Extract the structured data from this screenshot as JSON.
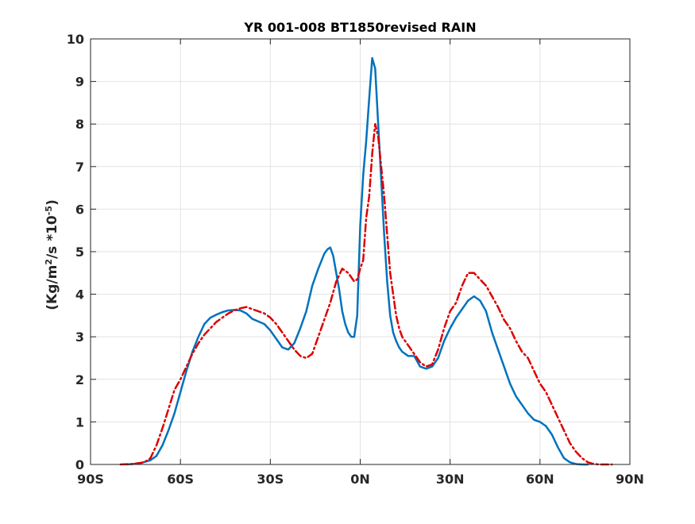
{
  "chart_data": {
    "type": "line",
    "title": "YR 001-008 BT1850revised RAIN",
    "ylabel": {
      "prefix": "(Kg/m",
      "sup1": "2",
      "mid": "/s   *10",
      "sup2": "-5",
      "suffix": ")"
    },
    "xlim": [
      -90,
      90
    ],
    "ylim": [
      0,
      10
    ],
    "x_ticks": [
      -90,
      -60,
      -30,
      0,
      30,
      60,
      90
    ],
    "x_tick_labels": [
      "90S",
      "60S",
      "30S",
      "0N",
      "30N",
      "60N",
      "90N"
    ],
    "y_ticks": [
      0,
      1,
      2,
      3,
      4,
      5,
      6,
      7,
      8,
      9,
      10
    ],
    "y_tick_labels": [
      "0",
      "1",
      "2",
      "3",
      "4",
      "5",
      "6",
      "7",
      "8",
      "9",
      "10"
    ],
    "grid": true,
    "series": [
      {
        "color": "#0072BD",
        "style": "solid",
        "x": [
          -78,
          -74,
          -70,
          -68,
          -66,
          -64,
          -62,
          -60,
          -58,
          -56,
          -54,
          -52,
          -50,
          -48,
          -46,
          -44,
          -42,
          -40,
          -38,
          -36,
          -34,
          -32,
          -30,
          -28,
          -26,
          -24,
          -22,
          -20,
          -18,
          -16,
          -14,
          -12,
          -11,
          -10,
          -9,
          -8,
          -7,
          -6,
          -5,
          -4,
          -3,
          -2,
          -1,
          0,
          1,
          2,
          3,
          4,
          5,
          6,
          7,
          8,
          9,
          10,
          11,
          12,
          13,
          14,
          16,
          18,
          20,
          22,
          24,
          26,
          28,
          30,
          32,
          34,
          36,
          38,
          40,
          42,
          44,
          46,
          48,
          50,
          52,
          54,
          56,
          58,
          60,
          62,
          64,
          66,
          68,
          70,
          72,
          74,
          76
        ],
        "y": [
          0,
          0.02,
          0.1,
          0.2,
          0.45,
          0.8,
          1.2,
          1.7,
          2.2,
          2.65,
          3.0,
          3.3,
          3.45,
          3.52,
          3.58,
          3.62,
          3.63,
          3.62,
          3.55,
          3.42,
          3.36,
          3.3,
          3.15,
          2.95,
          2.75,
          2.7,
          2.85,
          3.2,
          3.6,
          4.2,
          4.6,
          4.95,
          5.05,
          5.1,
          4.9,
          4.5,
          4.1,
          3.6,
          3.3,
          3.1,
          3.0,
          3.0,
          3.5,
          5.6,
          6.8,
          7.6,
          8.6,
          9.55,
          9.3,
          8.0,
          6.7,
          5.4,
          4.3,
          3.5,
          3.1,
          2.9,
          2.75,
          2.65,
          2.55,
          2.55,
          2.3,
          2.25,
          2.3,
          2.5,
          2.9,
          3.2,
          3.45,
          3.65,
          3.85,
          3.95,
          3.85,
          3.6,
          3.1,
          2.7,
          2.3,
          1.9,
          1.6,
          1.4,
          1.2,
          1.05,
          1.0,
          0.9,
          0.7,
          0.4,
          0.15,
          0.05,
          0.01,
          0,
          0
        ]
      },
      {
        "color": "#DD0000",
        "style": "dash-dot",
        "x": [
          -80,
          -76,
          -72,
          -70,
          -68,
          -66,
          -64,
          -62,
          -60,
          -58,
          -56,
          -54,
          -52,
          -50,
          -48,
          -46,
          -44,
          -42,
          -40,
          -38,
          -36,
          -34,
          -32,
          -30,
          -28,
          -26,
          -24,
          -22,
          -20,
          -18,
          -16,
          -14,
          -12,
          -10,
          -8,
          -6,
          -4,
          -2,
          -1,
          0,
          1,
          2,
          3,
          4,
          5,
          6,
          7,
          8,
          9,
          10,
          11,
          12,
          13,
          14,
          16,
          18,
          20,
          22,
          24,
          26,
          28,
          30,
          32,
          34,
          36,
          38,
          40,
          42,
          44,
          46,
          48,
          50,
          52,
          54,
          56,
          58,
          60,
          62,
          64,
          66,
          68,
          70,
          72,
          74,
          76,
          78,
          80,
          82,
          84
        ],
        "y": [
          0,
          0.01,
          0.05,
          0.15,
          0.45,
          0.85,
          1.3,
          1.75,
          2.0,
          2.3,
          2.6,
          2.85,
          3.05,
          3.2,
          3.35,
          3.45,
          3.55,
          3.62,
          3.67,
          3.7,
          3.65,
          3.6,
          3.55,
          3.45,
          3.3,
          3.1,
          2.9,
          2.7,
          2.55,
          2.5,
          2.6,
          3.0,
          3.4,
          3.8,
          4.3,
          4.6,
          4.5,
          4.3,
          4.35,
          4.6,
          4.8,
          5.8,
          6.3,
          7.3,
          8.0,
          7.7,
          7.0,
          6.3,
          5.4,
          4.5,
          4.0,
          3.5,
          3.2,
          3.0,
          2.8,
          2.6,
          2.4,
          2.3,
          2.35,
          2.7,
          3.2,
          3.6,
          3.8,
          4.2,
          4.5,
          4.5,
          4.35,
          4.2,
          3.95,
          3.7,
          3.4,
          3.2,
          2.9,
          2.65,
          2.5,
          2.2,
          1.9,
          1.7,
          1.4,
          1.1,
          0.8,
          0.5,
          0.3,
          0.15,
          0.05,
          0.01,
          0,
          0,
          0
        ]
      }
    ]
  }
}
